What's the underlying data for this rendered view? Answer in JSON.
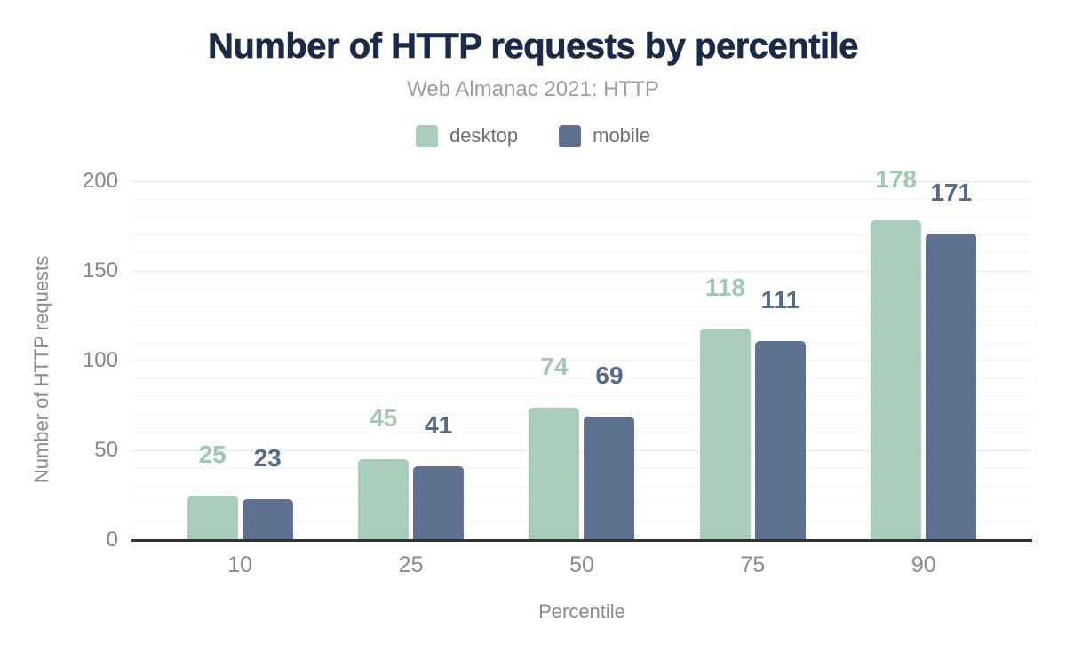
{
  "chart_data": {
    "type": "bar",
    "title": "Number of HTTP requests by percentile",
    "subtitle": "Web Almanac 2021: HTTP",
    "xlabel": "Percentile",
    "ylabel": "Number of HTTP requests",
    "categories": [
      "10",
      "25",
      "50",
      "75",
      "90"
    ],
    "series": [
      {
        "name": "desktop",
        "color": "#a9ccbb",
        "label_color": "#a0c8b3",
        "values": [
          25,
          45,
          74,
          118,
          178
        ]
      },
      {
        "name": "mobile",
        "color": "#5f7190",
        "label_color": "#56698c",
        "values": [
          23,
          41,
          69,
          111,
          171
        ]
      }
    ],
    "ylim": [
      0,
      200
    ],
    "yticks": [
      0,
      50,
      100,
      150,
      200
    ],
    "minor_tick_step": 10,
    "grid": true,
    "legend_position": "top",
    "colors": {
      "title": "#1a2b4a",
      "subtitle": "#9e9e9e",
      "legend_text": "#6f6f6f",
      "axis_text": "#858585",
      "axis_titles": "#8a8a8a",
      "axis_line": "#313135",
      "grid_major": "#e9e9e9",
      "grid_minor": "#f5f5f5",
      "background": "#ffffff"
    }
  }
}
